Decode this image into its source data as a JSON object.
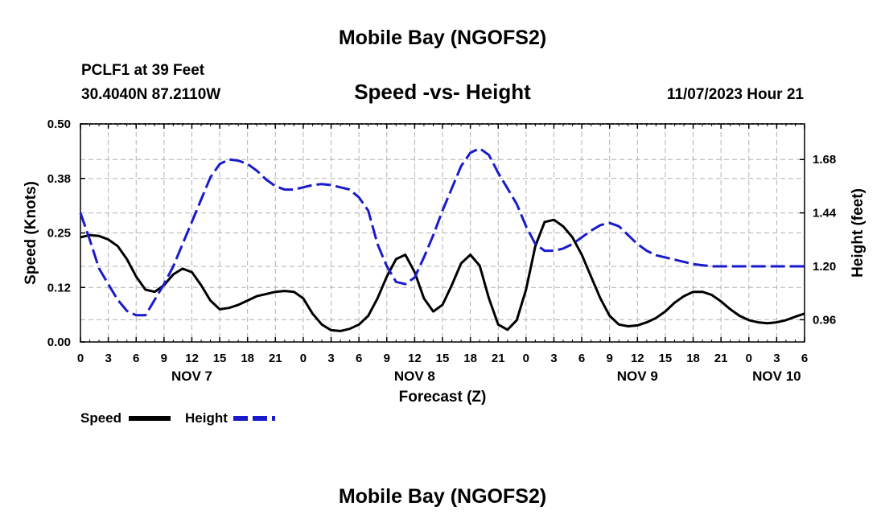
{
  "header": {
    "title": "Mobile Bay (NGOFS2)",
    "station": "PCLF1 at 39 Feet",
    "coords": "30.4040N  87.2110W",
    "subtitle": "Speed -vs- Height",
    "datetime": "11/07/2023 Hour 21"
  },
  "legend": {
    "speed_label": "Speed",
    "height_label": "Height"
  },
  "footer": {
    "title": "Mobile Bay (NGOFS2)"
  },
  "colors": {
    "speed": "#000000",
    "height": "#1a1acc",
    "grid": "#b0b0b0"
  },
  "chart_data": {
    "type": "line",
    "title": "Speed -vs- Height",
    "xlabel": "Forecast (Z)",
    "ylabel_left": "Speed (Knots)",
    "ylabel_right": "Height (feet)",
    "xlim": [
      0,
      78
    ],
    "ylim_left": [
      0,
      0.5
    ],
    "ylim_right": [
      0.86,
      1.84
    ],
    "yticks_left": [
      "0.00",
      "0.12",
      "0.25",
      "0.38",
      "0.50"
    ],
    "yticks_left_values": [
      0,
      0.125,
      0.25,
      0.375,
      0.5
    ],
    "yticks_right": [
      "0.96",
      "1.20",
      "1.44",
      "1.68"
    ],
    "yticks_right_values": [
      0.96,
      1.2,
      1.44,
      1.68
    ],
    "xticks": [
      "0",
      "3",
      "6",
      "9",
      "12",
      "15",
      "18",
      "21",
      "0",
      "3",
      "6",
      "9",
      "12",
      "15",
      "18",
      "21",
      "0",
      "3",
      "6",
      "9",
      "12",
      "15",
      "18",
      "21",
      "0",
      "3",
      "6"
    ],
    "day_labels": [
      {
        "hour": 12,
        "label": "NOV 7"
      },
      {
        "hour": 36,
        "label": "NOV 8"
      },
      {
        "hour": 60,
        "label": "NOV 9"
      },
      {
        "hour": 75,
        "label": "NOV 10"
      }
    ],
    "grid": true,
    "series": [
      {
        "name": "Speed",
        "axis": "left",
        "style": "solid",
        "x": [
          0,
          1,
          2,
          3,
          4,
          5,
          6,
          7,
          8,
          9,
          10,
          11,
          12,
          13,
          14,
          15,
          16,
          17,
          18,
          19,
          20,
          21,
          22,
          23,
          24,
          25,
          26,
          27,
          28,
          29,
          30,
          31,
          32,
          33,
          34,
          35,
          36,
          37,
          38,
          39,
          40,
          41,
          42,
          43,
          44,
          45,
          46,
          47,
          48,
          49,
          50,
          51,
          52,
          53,
          54,
          55,
          56,
          57,
          58,
          59,
          60,
          61,
          62,
          63,
          64,
          65,
          66,
          67,
          68,
          69,
          70,
          71,
          72,
          73,
          74,
          75,
          76,
          77,
          78
        ],
        "y": [
          0.24,
          0.245,
          0.243,
          0.235,
          0.22,
          0.19,
          0.15,
          0.12,
          0.115,
          0.13,
          0.155,
          0.168,
          0.16,
          0.13,
          0.095,
          0.075,
          0.078,
          0.085,
          0.095,
          0.105,
          0.11,
          0.115,
          0.117,
          0.115,
          0.1,
          0.065,
          0.04,
          0.027,
          0.025,
          0.03,
          0.04,
          0.06,
          0.1,
          0.15,
          0.19,
          0.2,
          0.16,
          0.1,
          0.07,
          0.085,
          0.13,
          0.18,
          0.2,
          0.175,
          0.1,
          0.04,
          0.028,
          0.05,
          0.12,
          0.22,
          0.275,
          0.28,
          0.265,
          0.24,
          0.2,
          0.15,
          0.1,
          0.06,
          0.04,
          0.036,
          0.038,
          0.045,
          0.055,
          0.07,
          0.09,
          0.105,
          0.115,
          0.115,
          0.108,
          0.093,
          0.075,
          0.06,
          0.05,
          0.045,
          0.043,
          0.045,
          0.05,
          0.058,
          0.065
        ]
      },
      {
        "name": "Height",
        "axis": "right",
        "style": "dashed",
        "x": [
          0,
          1,
          2,
          3,
          4,
          5,
          6,
          7,
          8,
          9,
          10,
          11,
          12,
          13,
          14,
          15,
          16,
          17,
          18,
          19,
          20,
          21,
          22,
          23,
          24,
          25,
          26,
          27,
          28,
          29,
          30,
          31,
          32,
          33,
          34,
          35,
          36,
          37,
          38,
          39,
          40,
          41,
          42,
          43,
          44,
          45,
          46,
          47,
          48,
          49,
          50,
          51,
          52,
          53,
          54,
          55,
          56,
          57,
          58,
          59,
          60,
          61,
          62,
          63,
          64,
          65,
          66,
          67,
          68,
          69,
          70,
          71,
          72,
          73,
          74,
          75,
          76,
          77,
          78
        ],
        "y": [
          1.44,
          1.32,
          1.19,
          1.12,
          1.05,
          1.0,
          0.98,
          0.98,
          1.05,
          1.12,
          1.2,
          1.3,
          1.4,
          1.5,
          1.6,
          1.66,
          1.68,
          1.675,
          1.66,
          1.63,
          1.59,
          1.56,
          1.545,
          1.545,
          1.555,
          1.565,
          1.57,
          1.565,
          1.555,
          1.545,
          1.51,
          1.45,
          1.3,
          1.2,
          1.13,
          1.12,
          1.15,
          1.24,
          1.34,
          1.45,
          1.55,
          1.65,
          1.71,
          1.73,
          1.7,
          1.62,
          1.55,
          1.48,
          1.38,
          1.3,
          1.27,
          1.27,
          1.28,
          1.3,
          1.33,
          1.36,
          1.385,
          1.395,
          1.38,
          1.34,
          1.3,
          1.27,
          1.25,
          1.24,
          1.23,
          1.22,
          1.21,
          1.205,
          1.2,
          1.2,
          1.2,
          1.2,
          1.2,
          1.2,
          1.2,
          1.2,
          1.2,
          1.2,
          1.2
        ]
      }
    ]
  }
}
